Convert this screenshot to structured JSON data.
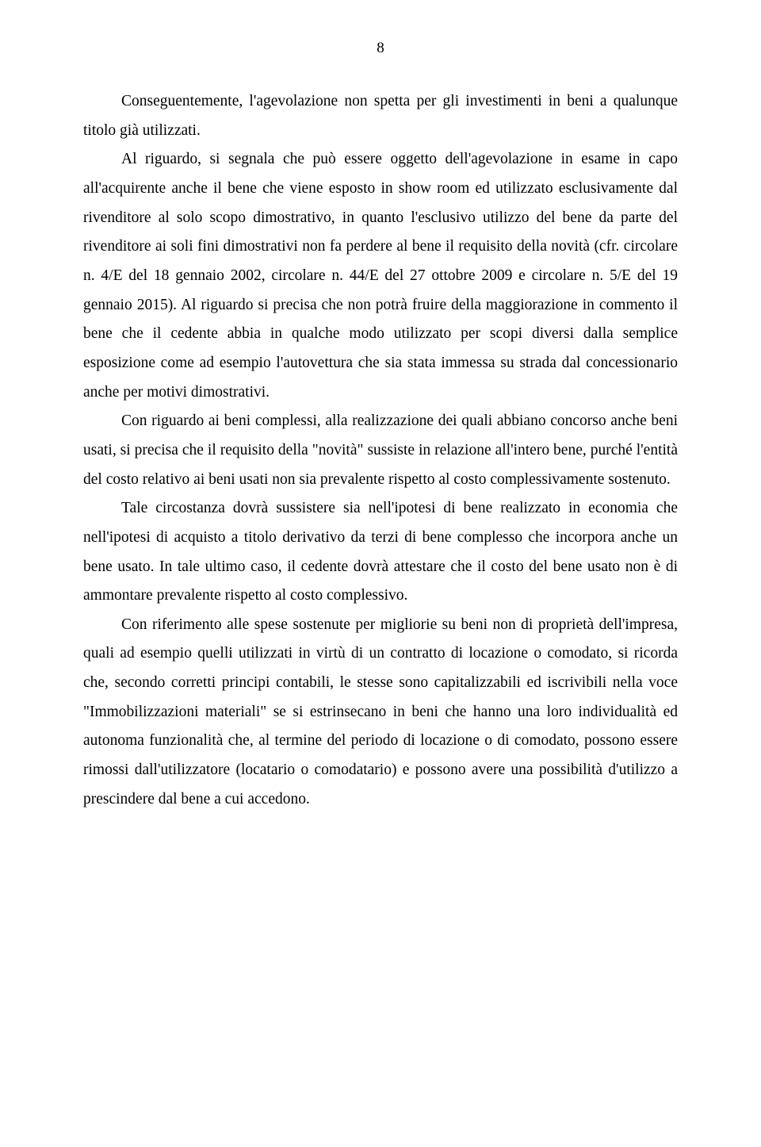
{
  "page_number": "8",
  "paragraphs": [
    "Conseguentemente, l'agevolazione non spetta per gli investimenti in beni a qualunque titolo già utilizzati.",
    "Al riguardo, si segnala che può essere oggetto dell'agevolazione in esame in capo all'acquirente anche il bene che viene esposto in show room ed utilizzato esclusivamente dal rivenditore al solo scopo dimostrativo, in quanto l'esclusivo utilizzo del bene da parte del rivenditore ai soli fini dimostrativi non fa perdere al bene il requisito della novità (cfr. circolare n. 4/E del 18 gennaio 2002, circolare n. 44/E del 27 ottobre 2009 e circolare n. 5/E del 19 gennaio 2015). Al riguardo si precisa che non potrà fruire della maggiorazione in commento il bene che il cedente abbia in qualche modo utilizzato per scopi diversi dalla semplice esposizione come ad esempio l'autovettura che sia stata immessa su strada dal concessionario anche per motivi dimostrativi.",
    "Con riguardo ai beni complessi, alla realizzazione dei quali abbiano concorso anche beni usati, si precisa che il requisito della \"novità\" sussiste in relazione all'intero bene, purché l'entità del costo relativo ai beni usati non sia prevalente rispetto al costo complessivamente sostenuto.",
    "Tale circostanza dovrà sussistere sia nell'ipotesi di bene realizzato in economia che nell'ipotesi di acquisto a titolo derivativo da terzi di bene complesso che incorpora anche un bene usato. In tale ultimo caso, il cedente dovrà attestare che il costo del bene usato non è di ammontare prevalente rispetto al costo complessivo.",
    "Con riferimento alle spese sostenute per migliorie su beni non di proprietà dell'impresa, quali ad esempio quelli utilizzati in virtù di un contratto di locazione o comodato, si ricorda che, secondo corretti principi contabili, le stesse sono capitalizzabili ed iscrivibili nella voce \"Immobilizzazioni materiali\" se si estrinsecano in beni che hanno una loro individualità ed autonoma funzionalità che, al termine del periodo di locazione o di comodato, possono essere rimossi dall'utilizzatore (locatario o comodatario) e possono avere una possibilità d'utilizzo a prescindere dal bene a cui accedono."
  ]
}
